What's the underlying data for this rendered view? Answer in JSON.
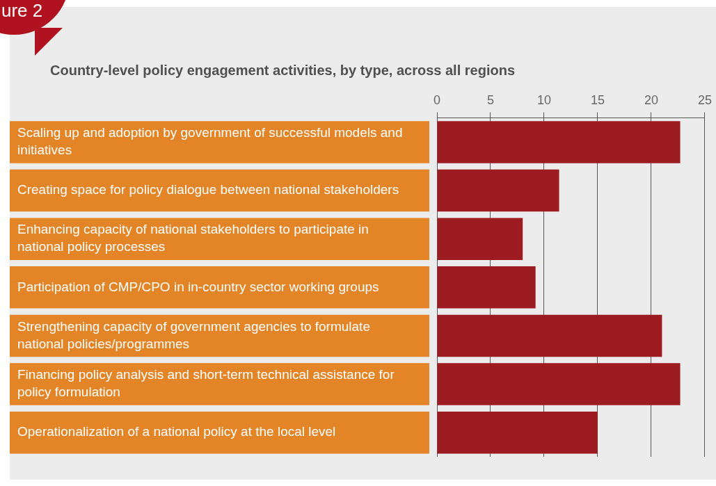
{
  "chart_data": {
    "type": "bar",
    "orientation": "horizontal",
    "title": "Country-level policy engagement activities, by type, across all regions",
    "annotations": [
      "ure 2"
    ],
    "categories": [
      "Scaling up and adoption by government of successful models and initiatives",
      "Creating space for policy dialogue between national stakeholders",
      "Enhancing capacity of national stakeholders to participate in national policy processes",
      "Participation of CMP/CPO in in-country sector working groups",
      "Strengthening capacity of government agencies to formulate national policies/programmes",
      "Financing policy analysis and short-term technical assistance for policy formulation",
      "Operationalization of a national policy at the local level"
    ],
    "series": [
      {
        "color": "#9c1c22",
        "values": [
          22.7,
          11.4,
          8,
          9.2,
          21,
          22.7,
          15
        ]
      }
    ],
    "xlim": [
      0,
      25
    ],
    "xticks": [
      0,
      5,
      10,
      15,
      20,
      25
    ],
    "grid": "x",
    "legend": false
  }
}
